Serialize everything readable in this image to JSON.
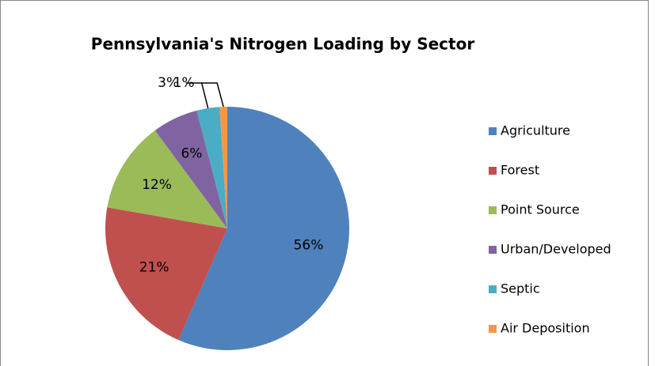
{
  "chart_data": {
    "type": "pie",
    "title": "Pennsylvania's Nitrogen Loading by Sector",
    "categories": [
      "Agriculture",
      "Forest",
      "Point Source",
      "Urban/Developed",
      "Septic",
      "Air Deposition"
    ],
    "values": [
      56,
      21,
      12,
      6,
      3,
      1
    ],
    "value_labels": [
      "56%",
      "21%",
      "12%",
      "6%",
      "3%",
      "1%"
    ],
    "colors": [
      "#4f81bd",
      "#c0504d",
      "#9bbb59",
      "#8064a2",
      "#4bacc6",
      "#f79646"
    ],
    "legend": "right"
  }
}
